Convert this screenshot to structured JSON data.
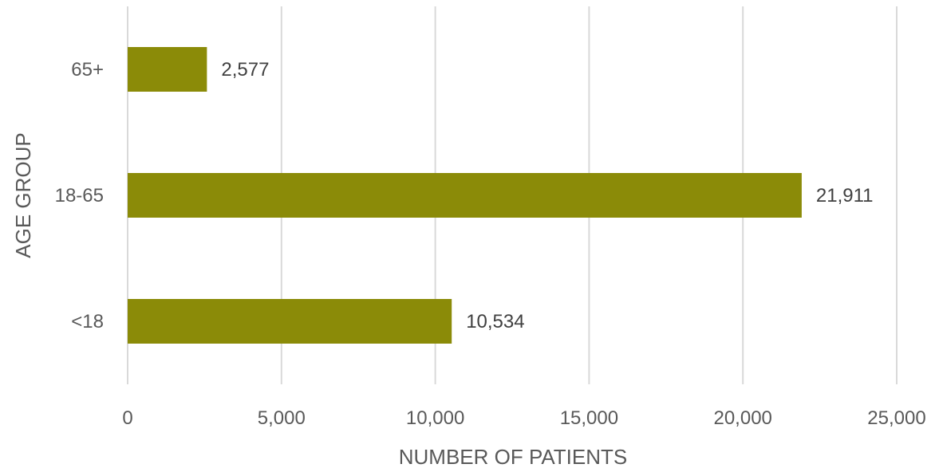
{
  "chart_data": {
    "type": "bar",
    "orientation": "horizontal",
    "categories": [
      "<18",
      "18-65",
      "65+"
    ],
    "values": [
      10534,
      21911,
      2577
    ],
    "data_labels": [
      "10,534",
      "21,911",
      "2,577"
    ],
    "xlabel": "NUMBER OF PATIENTS",
    "ylabel": "AGE GROUP",
    "xlim": [
      0,
      25000
    ],
    "x_ticks": [
      0,
      5000,
      10000,
      15000,
      20000,
      25000
    ],
    "x_tick_labels": [
      "0",
      "5,000",
      "10,000",
      "15,000",
      "20,000",
      "25,000"
    ],
    "grid": "vertical",
    "legend": "none",
    "bar_color": "#8b8b08",
    "grid_color": "#d9d9d9"
  }
}
